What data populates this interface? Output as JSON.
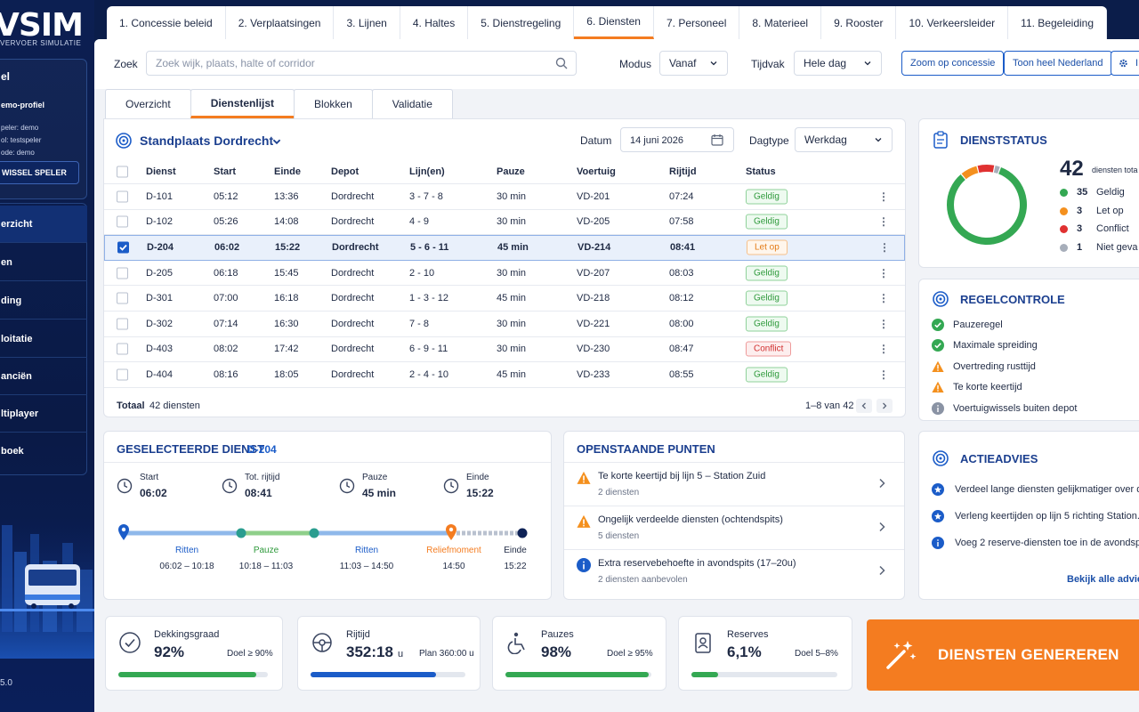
{
  "app": {
    "logo": "VSIM",
    "logo_sub": "VERVOER SIMULATIE",
    "version": "5.0"
  },
  "profile": {
    "title": "el",
    "name": "emo-profiel",
    "lines": [
      "peler: demo",
      "ol: testspeler",
      "ode: demo"
    ],
    "switch_label": "WISSEL SPELER"
  },
  "sidebar": {
    "items": [
      {
        "label": "erzicht",
        "active": true
      },
      {
        "label": "en",
        "active": false
      },
      {
        "label": "ding",
        "active": false
      },
      {
        "label": "loitatie",
        "active": false
      },
      {
        "label": "anciën",
        "active": false
      },
      {
        "label": "ltiplayer",
        "active": false
      },
      {
        "label": "boek",
        "active": false
      }
    ]
  },
  "topnav": {
    "tabs": [
      {
        "label": "1. Concessie beleid"
      },
      {
        "label": "2. Verplaatsingen"
      },
      {
        "label": "3. Lijnen"
      },
      {
        "label": "4. Haltes"
      },
      {
        "label": "5. Dienstregeling"
      },
      {
        "label": "6. Diensten",
        "active": true
      },
      {
        "label": "7. Personeel"
      },
      {
        "label": "8. Materieel"
      },
      {
        "label": "9. Rooster"
      },
      {
        "label": "10. Verkeersleider"
      },
      {
        "label": "11. Begeleiding"
      }
    ]
  },
  "toolbar": {
    "search_label": "Zoek",
    "search_placeholder": "Zoek wijk, plaats, halte of corridor",
    "modus_label": "Modus",
    "modus_value": "Vanaf",
    "tijdvak_label": "Tijdvak",
    "tijdvak_value": "Hele dag",
    "zoom_label": "Zoom op concessie",
    "nederland_label": "Toon heel Nederland",
    "settings_label": "I"
  },
  "subtabs": [
    {
      "label": "Overzicht"
    },
    {
      "label": "Dienstenlijst",
      "active": true
    },
    {
      "label": "Blokken"
    },
    {
      "label": "Validatie"
    }
  ],
  "duty_list": {
    "title": "Standplaats Dordrecht",
    "date_label": "Datum",
    "date_value": "14 juni 2026",
    "dagtype_label": "Dagtype",
    "dagtype_value": "Werkdag",
    "columns": [
      "Dienst",
      "Start",
      "Einde",
      "Depot",
      "Lijn(en)",
      "Pauze",
      "Voertuig",
      "Rijtijd",
      "Status"
    ],
    "rows": [
      {
        "dienst": "D-101",
        "start": "05:12",
        "einde": "13:36",
        "depot": "Dordrecht",
        "lijnen": "3 - 7 - 8",
        "pauze": "30 min",
        "voertuig": "VD-201",
        "rijtijd": "07:24",
        "status": "Geldig",
        "level": "ok",
        "selected": false
      },
      {
        "dienst": "D-102",
        "start": "05:26",
        "einde": "14:08",
        "depot": "Dordrecht",
        "lijnen": "4 - 9",
        "pauze": "30 min",
        "voertuig": "VD-205",
        "rijtijd": "07:58",
        "status": "Geldig",
        "level": "ok",
        "selected": false
      },
      {
        "dienst": "D-204",
        "start": "06:02",
        "einde": "15:22",
        "depot": "Dordrecht",
        "lijnen": "5 - 6 - 11",
        "pauze": "45 min",
        "voertuig": "VD-214",
        "rijtijd": "08:41",
        "status": "Let op",
        "level": "warn",
        "selected": true
      },
      {
        "dienst": "D-205",
        "start": "06:18",
        "einde": "15:45",
        "depot": "Dordrecht",
        "lijnen": "2 - 10",
        "pauze": "30 min",
        "voertuig": "VD-207",
        "rijtijd": "08:03",
        "status": "Geldig",
        "level": "ok",
        "selected": false
      },
      {
        "dienst": "D-301",
        "start": "07:00",
        "einde": "16:18",
        "depot": "Dordrecht",
        "lijnen": "1 - 3 - 12",
        "pauze": "45 min",
        "voertuig": "VD-218",
        "rijtijd": "08:12",
        "status": "Geldig",
        "level": "ok",
        "selected": false
      },
      {
        "dienst": "D-302",
        "start": "07:14",
        "einde": "16:30",
        "depot": "Dordrecht",
        "lijnen": "7 - 8",
        "pauze": "30 min",
        "voertuig": "VD-221",
        "rijtijd": "08:00",
        "status": "Geldig",
        "level": "ok",
        "selected": false
      },
      {
        "dienst": "D-403",
        "start": "08:02",
        "einde": "17:42",
        "depot": "Dordrecht",
        "lijnen": "6 - 9 - 11",
        "pauze": "30 min",
        "voertuig": "VD-230",
        "rijtijd": "08:47",
        "status": "Conflict",
        "level": "bad",
        "selected": false
      },
      {
        "dienst": "D-404",
        "start": "08:16",
        "einde": "18:05",
        "depot": "Dordrecht",
        "lijnen": "2 - 4 - 10",
        "pauze": "45 min",
        "voertuig": "VD-233",
        "rijtijd": "08:55",
        "status": "Geldig",
        "level": "ok",
        "selected": false
      }
    ],
    "total_label": "Totaal",
    "total_value": "42 diensten",
    "pagination": "1–8 van 42"
  },
  "dienststatus": {
    "title": "DIENSTSTATUS",
    "total": "42",
    "total_label": "diensten tota",
    "legend": [
      {
        "count": "35",
        "label": "Geldig",
        "color": "#34a853",
        "value": 35
      },
      {
        "count": "3",
        "label": "Let op",
        "color": "#f4901e",
        "value": 3
      },
      {
        "count": "3",
        "label": "Conflict",
        "color": "#e03131",
        "value": 3
      },
      {
        "count": "1",
        "label": "Niet geva",
        "color": "#a7aeba",
        "value": 1
      }
    ]
  },
  "regelcontrole": {
    "title": "REGELCONTROLE",
    "items": [
      {
        "label": "Pauzeregel",
        "level": "ok"
      },
      {
        "label": "Maximale spreiding",
        "level": "ok"
      },
      {
        "label": "Overtreding rusttijd",
        "level": "warn"
      },
      {
        "label": "Te korte keertijd",
        "level": "warn"
      },
      {
        "label": "Voertuigwissels buiten depot",
        "level": "info"
      }
    ]
  },
  "selected_duty": {
    "title": "GESELECTEERDE DIENST",
    "id": "D-204",
    "metrics": [
      {
        "label": "Start",
        "value": "06:02"
      },
      {
        "label": "Tot. rijtijd",
        "value": "08:41"
      },
      {
        "label": "Pauze",
        "value": "45 min"
      },
      {
        "label": "Einde",
        "value": "15:22"
      }
    ],
    "timeline": [
      {
        "label": "Ritten",
        "time": "06:02 – 10:18",
        "color": "#1b5cc8"
      },
      {
        "label": "Pauze",
        "time": "10:18 – 11:03",
        "color": "#2f9a3c"
      },
      {
        "label": "Ritten",
        "time": "11:03 – 14:50",
        "color": "#1b5cc8"
      },
      {
        "label": "Reliefmoment",
        "time": "14:50",
        "color": "#f47c20"
      },
      {
        "label": "Einde",
        "time": "15:22",
        "color": "#1f2a44"
      }
    ]
  },
  "open_points": {
    "title": "OPENSTAANDE PUNTEN",
    "items": [
      {
        "title": "Te korte keertijd bij lijn 5 – Station Zuid",
        "sub": "2 diensten",
        "level": "warn"
      },
      {
        "title": "Ongelijk verdeelde diensten (ochtendspits)",
        "sub": "5 diensten",
        "level": "warn"
      },
      {
        "title": "Extra reservebehoefte in avondspits (17–20u)",
        "sub": "2 diensten aanbevolen",
        "level": "info"
      }
    ]
  },
  "advies": {
    "title": "ACTIEADVIES",
    "items": [
      {
        "label": "Verdeel lange diensten gelijkmatiger over da"
      },
      {
        "label": "Verleng keertijden op lijn 5 richting Station."
      },
      {
        "label": "Voeg 2 reserve-diensten toe in de avondspi"
      }
    ],
    "link": "Bekijk alle advie"
  },
  "kpis": [
    {
      "label": "Dekkingsgraad",
      "value": "92%",
      "unit": "",
      "goal": "Doel ≥ 90%",
      "fill": 0.92,
      "color": "#34a853"
    },
    {
      "label": "Rijtijd",
      "value": "352:18",
      "unit": "u",
      "goal": "Plan 360:00 u",
      "fill": 0.81,
      "color": "#1b5cc8"
    },
    {
      "label": "Pauzes",
      "value": "98%",
      "unit": "",
      "goal": "Doel ≥ 95%",
      "fill": 0.98,
      "color": "#34a853"
    },
    {
      "label": "Reserves",
      "value": "6,1%",
      "unit": "",
      "goal": "Doel 5–8%",
      "fill": 0.18,
      "color": "#34a853"
    }
  ],
  "generate_label": "DIENSTEN GENEREREN"
}
